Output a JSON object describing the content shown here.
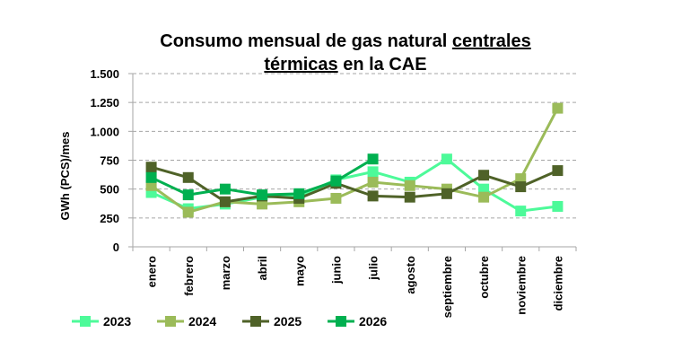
{
  "chart_data": {
    "type": "line",
    "title_line1_plain": "Consumo mensual de gas natural ",
    "title_line1_underlined": "centrales",
    "title_line2_underlined": "térmicas",
    "title_line2_plain": " en la CAE",
    "ylabel": "GWh (PCS)/mes",
    "xlabel": "",
    "ylim": [
      0,
      1500
    ],
    "yticks": [
      0,
      250,
      500,
      750,
      1000,
      1250,
      1500
    ],
    "ytick_labels": [
      "0",
      "250",
      "500",
      "750",
      "1.000",
      "1.250",
      "1.500"
    ],
    "grid": "horizontal-dashed",
    "legend_position": "bottom",
    "categories": [
      "enero",
      "febrero",
      "marzo",
      "abril",
      "mayo",
      "junio",
      "julio",
      "agosto",
      "septiembre",
      "octubre",
      "noviembre",
      "diciembre"
    ],
    "series": [
      {
        "name": "2023",
        "color": "#4dfa99",
        "marker": "square",
        "values": [
          470,
          330,
          370,
          430,
          440,
          580,
          650,
          560,
          760,
          500,
          310,
          350
        ]
      },
      {
        "name": "2024",
        "color": "#9bbb59",
        "marker": "square",
        "values": [
          530,
          300,
          390,
          370,
          390,
          420,
          560,
          530,
          500,
          430,
          590,
          1200
        ]
      },
      {
        "name": "2025",
        "color": "#4f6228",
        "marker": "square",
        "values": [
          690,
          600,
          390,
          440,
          420,
          550,
          440,
          430,
          460,
          620,
          520,
          660
        ]
      },
      {
        "name": "2026",
        "color": "#00b050",
        "marker": "square",
        "values": [
          600,
          450,
          500,
          450,
          460,
          570,
          760,
          null,
          null,
          null,
          null,
          null
        ]
      }
    ]
  }
}
